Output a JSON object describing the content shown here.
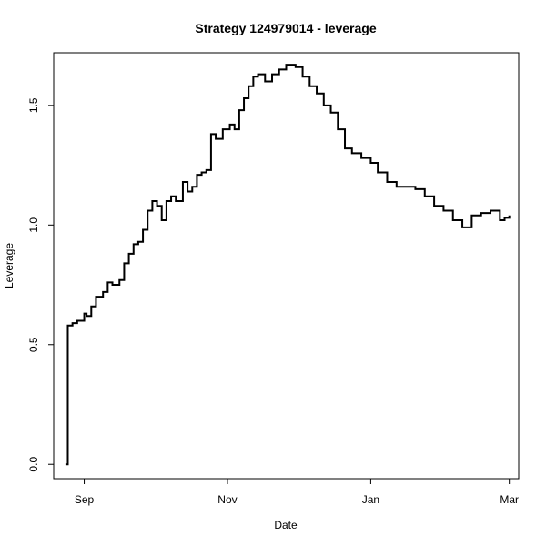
{
  "chart_data": {
    "type": "line",
    "title": "Strategy 124979014 - leverage",
    "xlabel": "Date",
    "ylabel": "Leverage",
    "ylim": [
      -0.06,
      1.72
    ],
    "xlim": [
      "2022-08-19",
      "2023-03-05"
    ],
    "x_ticks": [
      {
        "date": "2022-09-01",
        "label": "Sep"
      },
      {
        "date": "2022-11-01",
        "label": "Nov"
      },
      {
        "date": "2023-01-01",
        "label": "Jan"
      },
      {
        "date": "2023-03-01",
        "label": "Mar"
      }
    ],
    "y_ticks": [
      {
        "value": 0.0,
        "label": "0.0"
      },
      {
        "value": 0.5,
        "label": "0.5"
      },
      {
        "value": 1.0,
        "label": "1.0"
      },
      {
        "value": 1.5,
        "label": "1.5"
      }
    ],
    "series": [
      {
        "style": "step",
        "color": "#000000",
        "x": [
          "2022-08-24",
          "2022-08-25",
          "2022-08-27",
          "2022-08-29",
          "2022-09-01",
          "2022-09-02",
          "2022-09-04",
          "2022-09-06",
          "2022-09-09",
          "2022-09-11",
          "2022-09-13",
          "2022-09-16",
          "2022-09-18",
          "2022-09-20",
          "2022-09-22",
          "2022-09-24",
          "2022-09-26",
          "2022-09-28",
          "2022-09-30",
          "2022-10-02",
          "2022-10-04",
          "2022-10-06",
          "2022-10-08",
          "2022-10-10",
          "2022-10-13",
          "2022-10-15",
          "2022-10-17",
          "2022-10-19",
          "2022-10-21",
          "2022-10-23",
          "2022-10-25",
          "2022-10-27",
          "2022-10-30",
          "2022-11-02",
          "2022-11-04",
          "2022-11-06",
          "2022-11-08",
          "2022-11-10",
          "2022-11-12",
          "2022-11-14",
          "2022-11-17",
          "2022-11-20",
          "2022-11-23",
          "2022-11-26",
          "2022-11-30",
          "2022-12-03",
          "2022-12-06",
          "2022-12-09",
          "2022-12-12",
          "2022-12-15",
          "2022-12-18",
          "2022-12-21",
          "2022-12-24",
          "2022-12-28",
          "2023-01-01",
          "2023-01-04",
          "2023-01-08",
          "2023-01-12",
          "2023-01-16",
          "2023-01-20",
          "2023-01-24",
          "2023-01-28",
          "2023-02-01",
          "2023-02-05",
          "2023-02-09",
          "2023-02-13",
          "2023-02-17",
          "2023-02-21",
          "2023-02-25",
          "2023-02-27",
          "2023-03-01"
        ],
        "y": [
          0.0,
          0.58,
          0.59,
          0.6,
          0.63,
          0.62,
          0.66,
          0.7,
          0.72,
          0.76,
          0.75,
          0.77,
          0.84,
          0.88,
          0.92,
          0.93,
          0.98,
          1.06,
          1.1,
          1.08,
          1.02,
          1.1,
          1.12,
          1.1,
          1.18,
          1.14,
          1.16,
          1.21,
          1.22,
          1.23,
          1.38,
          1.36,
          1.4,
          1.42,
          1.4,
          1.48,
          1.53,
          1.58,
          1.62,
          1.63,
          1.6,
          1.63,
          1.65,
          1.67,
          1.66,
          1.62,
          1.58,
          1.55,
          1.5,
          1.47,
          1.4,
          1.32,
          1.3,
          1.28,
          1.26,
          1.22,
          1.18,
          1.16,
          1.16,
          1.15,
          1.12,
          1.08,
          1.06,
          1.02,
          0.99,
          1.04,
          1.05,
          1.06,
          1.02,
          1.03,
          1.04
        ]
      }
    ]
  }
}
